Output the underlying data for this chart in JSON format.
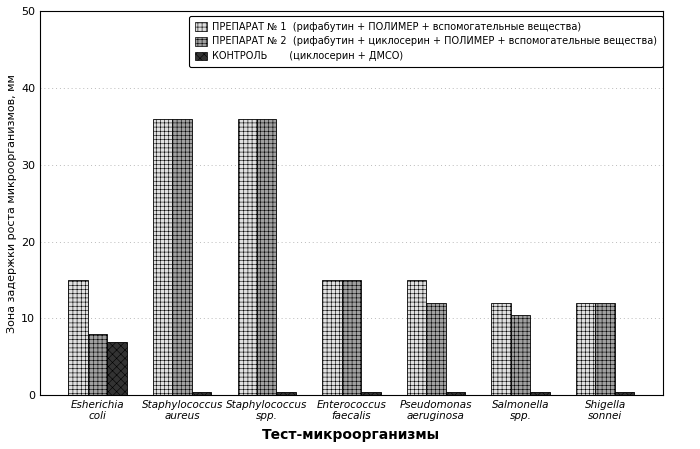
{
  "categories": [
    "Esherichia\ncoli",
    "Staphylococcus\naureus",
    "Staphylococcus\nspp.",
    "Enterococcus\nfaecalis",
    "Pseudomonas\naeruginosa",
    "Salmonella\nspp.",
    "Shigella\nsonnei"
  ],
  "series": [
    {
      "name": "ПРЕПАРАТ № 1  (рифабутин + ПОЛИМЕР + вспомогательные вещества)",
      "values": [
        15,
        36,
        36,
        15,
        15,
        12,
        12
      ],
      "color": "#e0e0e0",
      "hatch": "++++"
    },
    {
      "name": "ПРЕПАРАТ № 2  (рифабутин + циклосерин + ПОЛИМЕР + вспомогательные вещества)",
      "values": [
        8,
        36,
        36,
        15,
        12,
        10.5,
        12
      ],
      "color": "#a0a0a0",
      "hatch": "++++"
    },
    {
      "name": "КОНТРОЛЬ       (циклосерин + ДМСО)",
      "values": [
        7,
        0.5,
        0.5,
        0.5,
        0.5,
        0.5,
        0.5
      ],
      "color": "#333333",
      "hatch": "xxxx"
    }
  ],
  "ylabel": "Зона задержки роста микроорганизмов, мм",
  "xlabel": "Тест-микроорганизмы",
  "ylim": [
    0,
    50
  ],
  "yticks": [
    0,
    10,
    20,
    30,
    40,
    50
  ],
  "background_color": "#ffffff",
  "grid_color": "#bbbbbb",
  "bar_width": 0.23,
  "legend_fontsize": 7.0,
  "xlabel_fontsize": 10,
  "ylabel_fontsize": 8,
  "tick_fontsize": 8,
  "xtick_fontsize": 7.5
}
